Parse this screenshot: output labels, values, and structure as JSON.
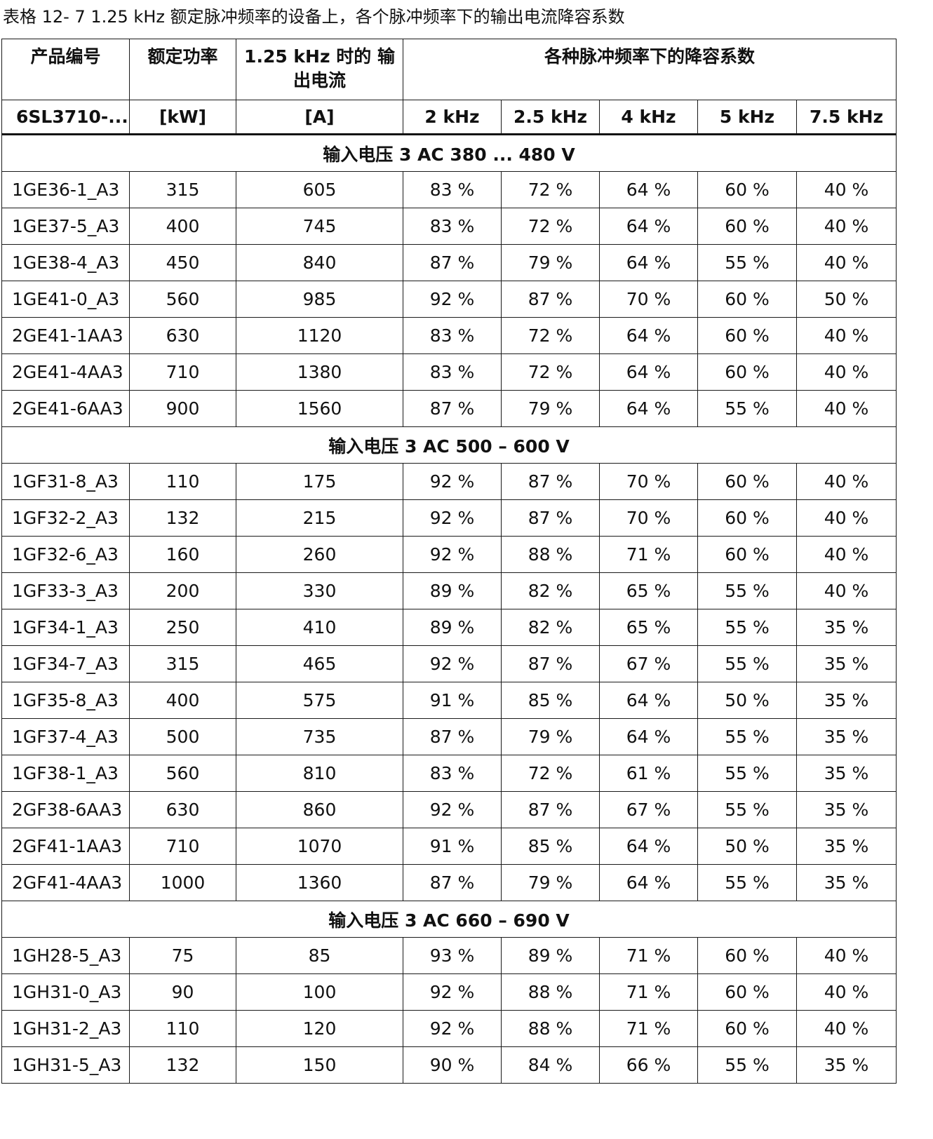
{
  "caption": "表格 12- 7    1.25 kHz 额定脉冲频率的设备上，各个脉冲频率下的输出电流降容系数",
  "header": {
    "product_no": "产品编号",
    "rated_power": "额定功率",
    "output_current": "1.25 kHz 时的 输出电流",
    "derating": "各种脉冲频率下的降容系数"
  },
  "units": {
    "product_no": "6SL3710-...",
    "rated_power": "[kW]",
    "output_current": "[A]",
    "f1": "2 kHz",
    "f2": "2.5 kHz",
    "f3": "4 kHz",
    "f4": "5 kHz",
    "f5": "7.5 kHz"
  },
  "sections": [
    {
      "title": "输入电压 3 AC 380 ... 480 V",
      "rows": [
        [
          "1GE36-1_A3",
          "315",
          "605",
          "83 %",
          "72 %",
          "64 %",
          "60 %",
          "40 %"
        ],
        [
          "1GE37-5_A3",
          "400",
          "745",
          "83 %",
          "72 %",
          "64 %",
          "60 %",
          "40 %"
        ],
        [
          "1GE38-4_A3",
          "450",
          "840",
          "87 %",
          "79 %",
          "64 %",
          "55 %",
          "40 %"
        ],
        [
          "1GE41-0_A3",
          "560",
          "985",
          "92 %",
          "87 %",
          "70 %",
          "60 %",
          "50 %"
        ],
        [
          "2GE41-1AA3",
          "630",
          "1120",
          "83 %",
          "72 %",
          "64 %",
          "60 %",
          "40 %"
        ],
        [
          "2GE41-4AA3",
          "710",
          "1380",
          "83 %",
          "72 %",
          "64 %",
          "60 %",
          "40 %"
        ],
        [
          "2GE41-6AA3",
          "900",
          "1560",
          "87 %",
          "79 %",
          "64 %",
          "55 %",
          "40 %"
        ]
      ]
    },
    {
      "title": "输入电压 3 AC 500 – 600 V",
      "rows": [
        [
          "1GF31-8_A3",
          "110",
          "175",
          "92 %",
          "87 %",
          "70 %",
          "60 %",
          "40 %"
        ],
        [
          "1GF32-2_A3",
          "132",
          "215",
          "92 %",
          "87 %",
          "70 %",
          "60 %",
          "40 %"
        ],
        [
          "1GF32-6_A3",
          "160",
          "260",
          "92 %",
          "88 %",
          "71 %",
          "60 %",
          "40 %"
        ],
        [
          "1GF33-3_A3",
          "200",
          "330",
          "89 %",
          "82 %",
          "65 %",
          "55 %",
          "40 %"
        ],
        [
          "1GF34-1_A3",
          "250",
          "410",
          "89 %",
          "82 %",
          "65 %",
          "55 %",
          "35 %"
        ],
        [
          "1GF34-7_A3",
          "315",
          "465",
          "92 %",
          "87 %",
          "67 %",
          "55 %",
          "35 %"
        ],
        [
          "1GF35-8_A3",
          "400",
          "575",
          "91 %",
          "85 %",
          "64 %",
          "50 %",
          "35 %"
        ],
        [
          "1GF37-4_A3",
          "500",
          "735",
          "87 %",
          "79 %",
          "64 %",
          "55 %",
          "35 %"
        ],
        [
          "1GF38-1_A3",
          "560",
          "810",
          "83 %",
          "72 %",
          "61 %",
          "55 %",
          "35 %"
        ],
        [
          "2GF38-6AA3",
          "630",
          "860",
          "92 %",
          "87 %",
          "67 %",
          "55 %",
          "35 %"
        ],
        [
          "2GF41-1AA3",
          "710",
          "1070",
          "91 %",
          "85 %",
          "64 %",
          "50 %",
          "35 %"
        ],
        [
          "2GF41-4AA3",
          "1000",
          "1360",
          "87 %",
          "79 %",
          "64 %",
          "55 %",
          "35 %"
        ]
      ]
    },
    {
      "title": "输入电压 3 AC 660 – 690 V",
      "rows": [
        [
          "1GH28-5_A3",
          "75",
          "85",
          "93 %",
          "89 %",
          "71 %",
          "60 %",
          "40 %"
        ],
        [
          "1GH31-0_A3",
          "90",
          "100",
          "92 %",
          "88 %",
          "71 %",
          "60 %",
          "40 %"
        ],
        [
          "1GH31-2_A3",
          "110",
          "120",
          "92 %",
          "88 %",
          "71 %",
          "60 %",
          "40 %"
        ],
        [
          "1GH31-5_A3",
          "132",
          "150",
          "90 %",
          "84 %",
          "66 %",
          "55 %",
          "35 %"
        ]
      ]
    }
  ]
}
